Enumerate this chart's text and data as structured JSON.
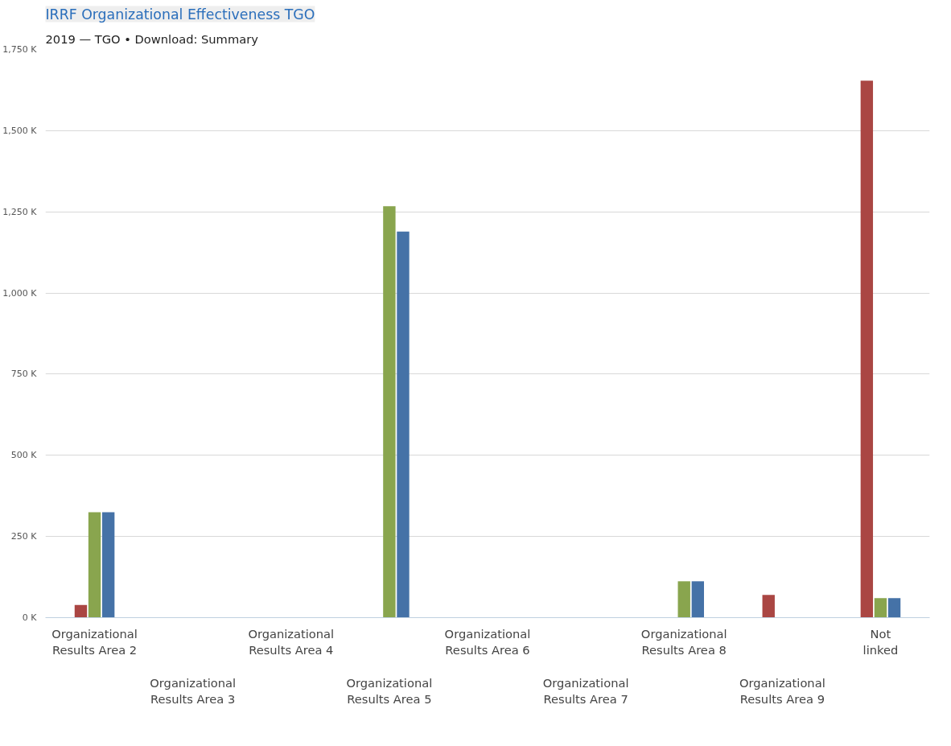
{
  "chart_data": {
    "type": "bar",
    "title": "IRRF Organizational Effectiveness TGO",
    "subtitle": "2019 — TGO • Download: Summary",
    "categories": [
      "Organizational Results Area 2",
      "Organizational Results Area 3",
      "Organizational Results Area 4",
      "Organizational Results Area 5",
      "Organizational Results Area 6",
      "Organizational Results Area 7",
      "Organizational Results Area 8",
      "Organizational Results Area 9",
      "Not linked"
    ],
    "series": [
      {
        "color": "#aa4643",
        "values": [
          39,
          null,
          null,
          null,
          null,
          null,
          null,
          70,
          1654
        ]
      },
      {
        "color": "#89a54e",
        "values": [
          325,
          null,
          null,
          1267,
          null,
          null,
          112,
          null,
          60
        ]
      },
      {
        "color": "#4572a7",
        "values": [
          325,
          null,
          null,
          1189,
          null,
          null,
          112,
          null,
          60
        ]
      }
    ],
    "ylim": [
      0,
      1750
    ],
    "yticks": [
      {
        "value": 0,
        "label": "0 K"
      },
      {
        "value": 250,
        "label": "250 K"
      },
      {
        "value": 500,
        "label": "500 K"
      },
      {
        "value": 750,
        "label": "750 K"
      },
      {
        "value": 1000,
        "label": "1,000 K"
      },
      {
        "value": 1250,
        "label": "1,250 K"
      },
      {
        "value": 1500,
        "label": "1,500 K"
      },
      {
        "value": 1750,
        "label": "1,750 K"
      }
    ],
    "grid": "y"
  }
}
